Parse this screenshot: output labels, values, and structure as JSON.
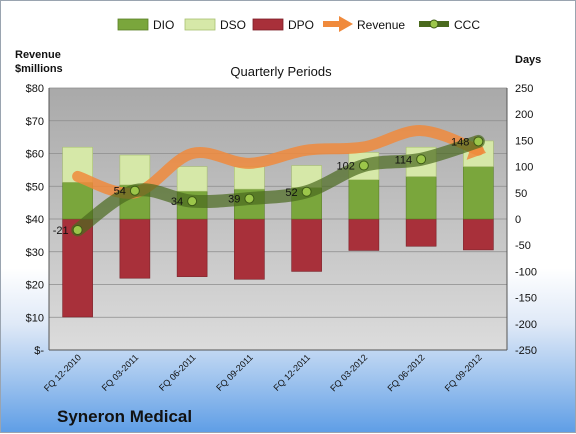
{
  "company": "Syneron Medical",
  "legend": {
    "dio": "DIO",
    "dso": "DSO",
    "dpo": "DPO",
    "revenue": "Revenue",
    "ccc": "CCC"
  },
  "colors": {
    "dio": "#7aa63c",
    "dso": "#d6e8a8",
    "dpo": "#a8303a",
    "revenue": "#f08a3c",
    "ccc": "#4a6a1e",
    "plot_bg": "#c8c8c8"
  },
  "chart_data": {
    "type": "bar",
    "title": "Quarterly Periods",
    "left_axis_title": "Revenue\n$millions",
    "right_axis_title": "Days",
    "categories": [
      "FQ 12-2010",
      "FQ 03-2011",
      "FQ 06-2011",
      "FQ 09-2011",
      "FQ 12-2011",
      "FQ 03-2012",
      "FQ 06-2012",
      "FQ 09-2012"
    ],
    "left_axis": {
      "min": 0,
      "max": 80,
      "step": 10,
      "ticks": [
        "$-",
        "$10",
        "$20",
        "$30",
        "$40",
        "$50",
        "$60",
        "$70",
        "$80"
      ]
    },
    "right_axis": {
      "min": -250,
      "max": 250,
      "step": 50,
      "ticks": [
        "-250",
        "-200",
        "-150",
        "-100",
        "-50",
        "0",
        "50",
        "100",
        "150",
        "200",
        "250"
      ]
    },
    "series": [
      {
        "name": "DIO",
        "axis": "right",
        "values": [
          70,
          65,
          53,
          57,
          60,
          75,
          81,
          100
        ]
      },
      {
        "name": "DSO",
        "axis": "right",
        "values": [
          67,
          57,
          47,
          43,
          42,
          52,
          56,
          49
        ]
      },
      {
        "name": "DPO",
        "axis": "right",
        "values": [
          -187,
          -113,
          -110,
          -115,
          -100,
          -60,
          -52,
          -59
        ]
      },
      {
        "name": "Revenue",
        "axis": "left",
        "values": [
          53,
          48,
          60,
          57,
          61,
          62,
          67,
          61
        ]
      },
      {
        "name": "CCC",
        "axis": "right",
        "values": [
          -21,
          54,
          34,
          39,
          52,
          102,
          114,
          148
        ],
        "labels": [
          "-21",
          "54",
          "34",
          "39",
          "52",
          "102",
          "114",
          "148"
        ]
      }
    ]
  }
}
